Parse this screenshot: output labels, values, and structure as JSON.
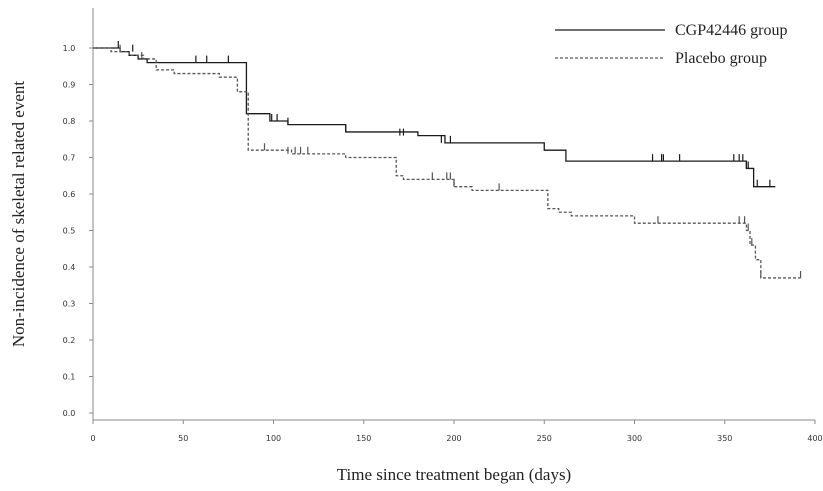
{
  "chart_data": {
    "type": "line",
    "xlabel": "Time since treatment began (days)",
    "ylabel": "Non-incidence of skeletal related event",
    "xlim": [
      0,
      400
    ],
    "ylim": [
      0,
      1.0
    ],
    "xticks": [
      "0",
      "50",
      "100",
      "150",
      "200",
      "250",
      "300",
      "350",
      "400"
    ],
    "yticks": [
      "0.0",
      "0.1",
      "0.2",
      "0.3",
      "0.4",
      "0.5",
      "0.6",
      "0.7",
      "0.8",
      "0.9",
      "1.0"
    ],
    "grid": false,
    "legend_position": "top-right",
    "series": [
      {
        "name": "CGP42446 group",
        "style": "solid",
        "color": "#1a1a1a",
        "x": [
          0,
          15,
          20,
          25,
          30,
          75,
          85,
          98,
          108,
          140,
          180,
          195,
          245,
          250,
          262,
          360,
          362,
          366,
          378
        ],
        "y": [
          1.0,
          0.99,
          0.98,
          0.97,
          0.96,
          0.96,
          0.82,
          0.8,
          0.79,
          0.77,
          0.76,
          0.74,
          0.74,
          0.72,
          0.69,
          0.69,
          0.67,
          0.62,
          0.62
        ],
        "censor_x": [
          14,
          22,
          57,
          63,
          75,
          99,
          102,
          108,
          140,
          170,
          172,
          193,
          198,
          310,
          315,
          316,
          325,
          355,
          358,
          360,
          362,
          363,
          368,
          375
        ],
        "censor_y": [
          1.0,
          0.99,
          0.96,
          0.96,
          0.96,
          0.8,
          0.8,
          0.79,
          0.77,
          0.76,
          0.76,
          0.74,
          0.74,
          0.69,
          0.69,
          0.69,
          0.69,
          0.69,
          0.69,
          0.69,
          0.67,
          0.67,
          0.62,
          0.62
        ]
      },
      {
        "name": "Placebo group",
        "style": "dashed",
        "color": "#555555",
        "x": [
          0,
          10,
          20,
          28,
          35,
          45,
          70,
          80,
          86,
          110,
          140,
          168,
          172,
          180,
          200,
          210,
          252,
          258,
          265,
          300,
          360,
          362,
          364,
          367,
          370,
          392
        ],
        "y": [
          1.0,
          0.99,
          0.98,
          0.97,
          0.94,
          0.93,
          0.92,
          0.88,
          0.72,
          0.71,
          0.7,
          0.65,
          0.64,
          0.64,
          0.62,
          0.61,
          0.56,
          0.55,
          0.54,
          0.52,
          0.52,
          0.5,
          0.46,
          0.42,
          0.37,
          0.37
        ],
        "censor_x": [
          15,
          27,
          95,
          108,
          112,
          115,
          119,
          188,
          196,
          198,
          200,
          225,
          313,
          358,
          361,
          363,
          365,
          370,
          392
        ],
        "censor_y": [
          0.99,
          0.97,
          0.72,
          0.71,
          0.71,
          0.71,
          0.71,
          0.64,
          0.64,
          0.64,
          0.62,
          0.61,
          0.52,
          0.52,
          0.52,
          0.5,
          0.46,
          0.37,
          0.37
        ]
      }
    ]
  }
}
